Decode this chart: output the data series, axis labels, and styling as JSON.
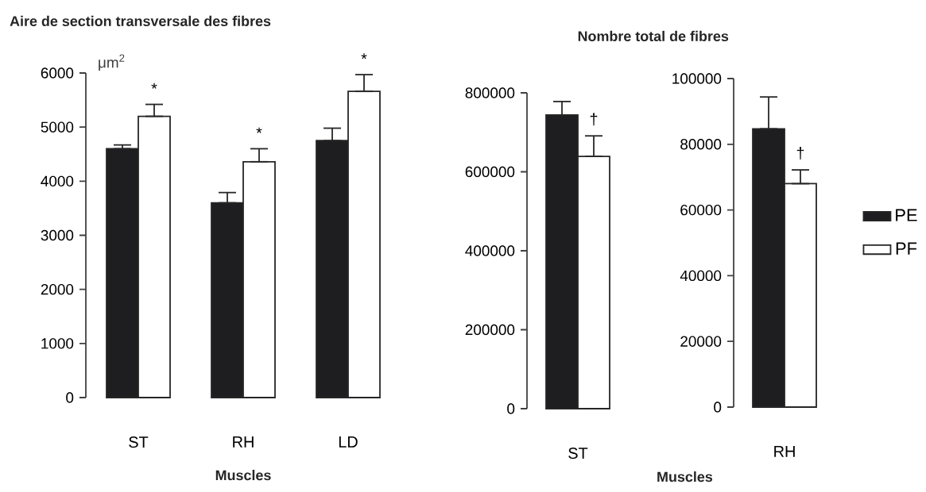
{
  "chart_data": [
    {
      "type": "bar",
      "title": "Aire de section transversale des fibres",
      "ylabel": "μm$^{2}$",
      "xlabel": "Muscles",
      "categories": [
        "ST",
        "RH",
        "LD"
      ],
      "series": [
        {
          "color": "#1e1e20",
          "values": [
            4600,
            3600,
            4750
          ],
          "errors": [
            [
              4600,
              4670
            ],
            [
              3600,
              3790
            ],
            [
              4750,
              4980
            ]
          ]
        },
        {
          "color": "#ffffff",
          "values": [
            5200,
            4360,
            5660
          ],
          "errors": [
            [
              5200,
              5420
            ],
            [
              4360,
              4600
            ],
            [
              5660,
              5970
            ]
          ]
        }
      ],
      "ylim": [
        0,
        6000
      ],
      "yticks": [
        0,
        1000,
        2000,
        3000,
        4000,
        5000,
        6000
      ],
      "annotations": [
        {
          "text": "*",
          "x": "ST",
          "y": 5200
        },
        {
          "text": "*",
          "x": "RH",
          "y": 4360
        },
        {
          "text": "*",
          "x": "LD",
          "y": 5660
        }
      ]
    },
    {
      "type": "bar",
      "title": "Nombre total de fibres",
      "xlabel": "Muscles",
      "categories": [
        "ST"
      ],
      "series": [
        {
          "color": "#1e1e20",
          "values": [
            744000
          ],
          "errors": [
            [
              744000,
              778000
            ]
          ]
        },
        {
          "color": "#ffffff",
          "values": [
            639000
          ],
          "errors": [
            [
              639000,
              691000
            ]
          ]
        }
      ],
      "ylim": [
        0,
        800000
      ],
      "yticks": [
        0,
        200000,
        400000,
        600000,
        800000
      ],
      "annotations": [
        {
          "text": "†",
          "x": "ST",
          "y": 639000
        }
      ]
    },
    {
      "type": "bar",
      "categories": [
        "RH"
      ],
      "legend": "right",
      "series": [
        {
          "name": "PE",
          "color": "#1e1e20",
          "values": [
            84700
          ],
          "errors": [
            [
              84700,
              94400
            ]
          ]
        },
        {
          "name": "PF",
          "color": "#ffffff",
          "values": [
            68000
          ],
          "errors": [
            [
              68000,
              72200
            ]
          ]
        }
      ],
      "ylim": [
        0,
        100000
      ],
      "yticks": [
        0,
        20000,
        40000,
        60000,
        80000,
        100000
      ],
      "annotations": [
        {
          "text": "†",
          "x": "RH",
          "y": 68000
        }
      ]
    }
  ]
}
